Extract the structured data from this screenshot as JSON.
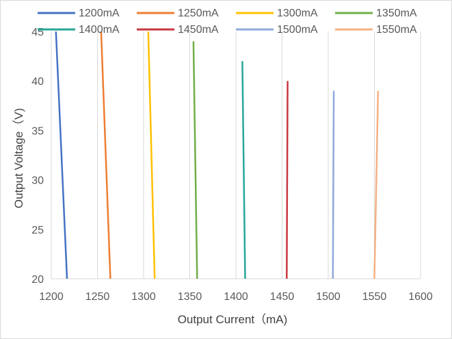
{
  "chart_data": {
    "type": "line",
    "xlabel": "Output Current（mA)",
    "ylabel": "Output Voltage（V)",
    "xlim": [
      1200,
      1600
    ],
    "ylim": [
      20,
      45
    ],
    "xticks": [
      "1200",
      "1250",
      "1300",
      "1350",
      "1400",
      "1450",
      "1500",
      "1550",
      "1600"
    ],
    "yticks": [
      "20",
      "25",
      "30",
      "35",
      "40",
      "45"
    ],
    "grid": "vertical",
    "legend": "top",
    "series": [
      {
        "name": "1200mA",
        "color": "#4472c4",
        "points": [
          [
            1205,
            45
          ],
          [
            1217,
            20
          ]
        ]
      },
      {
        "name": "1250mA",
        "color": "#ed7d31",
        "points": [
          [
            1254,
            45
          ],
          [
            1264,
            20
          ]
        ]
      },
      {
        "name": "1300mA",
        "color": "#ffc000",
        "points": [
          [
            1305,
            45
          ],
          [
            1312,
            20
          ]
        ]
      },
      {
        "name": "1350mA",
        "color": "#70ad47",
        "points": [
          [
            1354,
            44
          ],
          [
            1358,
            20
          ]
        ]
      },
      {
        "name": "1400mA",
        "color": "#26a69a",
        "points": [
          [
            1407,
            42
          ],
          [
            1410,
            20
          ]
        ]
      },
      {
        "name": "1450mA",
        "color": "#c8373f",
        "points": [
          [
            1456,
            40
          ],
          [
            1455,
            20
          ]
        ]
      },
      {
        "name": "1500mA",
        "color": "#8fa8dc",
        "points": [
          [
            1506,
            39
          ],
          [
            1505,
            20
          ]
        ]
      },
      {
        "name": "1550mA",
        "color": "#f4b183",
        "points": [
          [
            1554,
            39
          ],
          [
            1550,
            20
          ]
        ]
      }
    ]
  }
}
